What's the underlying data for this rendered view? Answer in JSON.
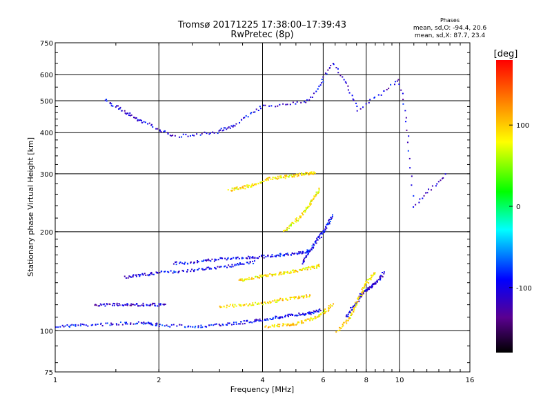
{
  "chart_data": {
    "type": "scatter",
    "title": "Tromsø 20171225 17:38:00–17:39:43",
    "subtitle": "RwPretec (8p)",
    "xlabel": "Frequency [MHz]",
    "ylabel": "Stationary phase Virtual Height [km]",
    "xscale": "log",
    "yscale": "log",
    "xlim": [
      1,
      16
    ],
    "ylim": [
      75,
      750
    ],
    "xticks": [
      1,
      2,
      4,
      6,
      8,
      10,
      16
    ],
    "yticks": [
      75,
      100,
      200,
      300,
      400,
      500,
      600,
      750
    ],
    "grid": true,
    "phase_box": {
      "heading": "Phases",
      "line1": "mean, sd,O: -94.4, 20.6",
      "line2": "mean, sd,X:  87.7, 23.4"
    },
    "colorbar": {
      "label": "[deg]",
      "range": [
        -180,
        180
      ],
      "ticks": [
        100,
        0,
        -100
      ],
      "colormap": "rainbow"
    },
    "traces": [
      {
        "x": [
          1.0,
          1.2,
          1.5,
          1.8,
          2.0,
          2.5,
          3.0,
          3.5,
          4.0,
          4.5,
          5.0,
          5.5,
          5.9
        ],
        "y": [
          103,
          104,
          105,
          106,
          104,
          103,
          104,
          106,
          108,
          110,
          112,
          113,
          116
        ],
        "phase": -95
      },
      {
        "x": [
          4.1,
          4.6,
          5.0,
          5.5,
          6.0,
          6.4
        ],
        "y": [
          103,
          104,
          105,
          108,
          113,
          120
        ],
        "phase": 95
      },
      {
        "x": [
          1.3,
          1.5,
          1.7,
          1.9,
          2.1
        ],
        "y": [
          120,
          120,
          120,
          120,
          120
        ],
        "phase": -110
      },
      {
        "x": [
          3.0,
          3.5,
          4.0,
          4.5,
          5.0,
          5.5
        ],
        "y": [
          118,
          120,
          121,
          124,
          126,
          128
        ],
        "phase": 90
      },
      {
        "x": [
          1.6,
          1.8,
          2.0,
          2.4,
          2.8,
          3.3,
          3.8
        ],
        "y": [
          145,
          148,
          150,
          152,
          155,
          158,
          162
        ],
        "phase": -100
      },
      {
        "x": [
          3.4,
          3.8,
          4.2,
          4.6,
          5.0,
          5.5,
          5.9
        ],
        "y": [
          142,
          145,
          148,
          150,
          152,
          155,
          158
        ],
        "phase": 90
      },
      {
        "x": [
          2.2,
          2.6,
          3.0,
          3.5,
          4.0,
          4.5,
          5.0,
          5.5
        ],
        "y": [
          160,
          162,
          165,
          166,
          168,
          170,
          172,
          175
        ],
        "phase": -100
      },
      {
        "x": [
          5.2,
          5.5,
          5.8,
          6.1,
          6.4
        ],
        "y": [
          160,
          175,
          190,
          205,
          225
        ],
        "phase": -95
      },
      {
        "x": [
          3.2,
          3.5,
          3.8,
          4.2,
          4.6,
          5.0,
          5.4,
          5.7
        ],
        "y": [
          268,
          272,
          278,
          290,
          293,
          297,
          300,
          302
        ],
        "phase": 90
      },
      {
        "x": [
          4.6,
          5.0,
          5.3,
          5.6,
          5.9
        ],
        "y": [
          200,
          215,
          230,
          250,
          270
        ],
        "phase": 85
      },
      {
        "x": [
          1.4,
          1.6,
          1.8,
          2.2,
          2.9,
          3.3,
          4.0,
          5.5,
          6.4,
          7.6,
          10.0,
          11.0,
          13.8
        ],
        "y": [
          500,
          460,
          430,
          390,
          400,
          420,
          480,
          500,
          650,
          470,
          580,
          240,
          300
        ],
        "phase": -105
      },
      {
        "x": [
          7.0,
          7.4,
          7.8,
          8.2,
          8.6,
          9.0
        ],
        "y": [
          110,
          120,
          130,
          135,
          140,
          150
        ],
        "phase": -110
      },
      {
        "x": [
          6.6,
          7.2,
          7.6,
          8.0,
          8.5
        ],
        "y": [
          100,
          110,
          125,
          140,
          150
        ],
        "phase": 90
      }
    ]
  }
}
